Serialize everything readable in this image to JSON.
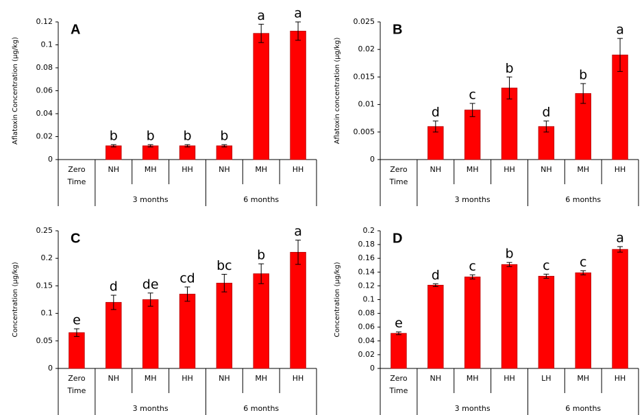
{
  "chart_data": [
    {
      "type": "bar",
      "panel": "A",
      "ylabel": "Aflatoxin Concentration (µg/kg)",
      "color": "#ff0000",
      "categories": [
        "Zero Time",
        "NH",
        "MH",
        "HH",
        "NH",
        "MH",
        "HH"
      ],
      "values": [
        0,
        0.012,
        0.012,
        0.012,
        0.012,
        0.11,
        0.112
      ],
      "errors": [
        null,
        0.001,
        0.001,
        0.001,
        0.001,
        0.008,
        0.008
      ],
      "letters": [
        null,
        "b",
        "b",
        "b",
        "b",
        "a",
        "a"
      ],
      "groups": [
        {
          "name": "3 months",
          "span": 3
        },
        {
          "name": "6 months",
          "span": 3
        }
      ],
      "ylim": [
        0,
        0.12
      ],
      "yticks": [
        0,
        0.02,
        0.04,
        0.06,
        0.08,
        0.1,
        0.12
      ]
    },
    {
      "type": "bar",
      "panel": "B",
      "ylabel": "Aflatoxin concentration (µg/kg)",
      "color": "#ff0000",
      "categories": [
        "Zero Time",
        "NH",
        "MH",
        "HH",
        "NH",
        "MH",
        "HH"
      ],
      "values": [
        0,
        0.006,
        0.009,
        0.013,
        0.006,
        0.012,
        0.019
      ],
      "errors": [
        null,
        0.001,
        0.0012,
        0.002,
        0.001,
        0.0018,
        0.003
      ],
      "letters": [
        null,
        "d",
        "c",
        "b",
        "d",
        "b",
        "a"
      ],
      "groups": [
        {
          "name": "3 months",
          "span": 3
        },
        {
          "name": "6 months",
          "span": 3
        }
      ],
      "ylim": [
        0,
        0.025
      ],
      "yticks": [
        0,
        0.005,
        0.01,
        0.015,
        0.02,
        0.025
      ]
    },
    {
      "type": "bar",
      "panel": "C",
      "ylabel": "Concentration (µg/kg)",
      "color": "#ff0000",
      "categories": [
        "Zero Time",
        "NH",
        "MH",
        "HH",
        "NH",
        "MH",
        "HH"
      ],
      "values": [
        0.065,
        0.12,
        0.125,
        0.135,
        0.155,
        0.172,
        0.211
      ],
      "errors": [
        0.007,
        0.013,
        0.012,
        0.013,
        0.016,
        0.018,
        0.022
      ],
      "letters": [
        "e",
        "d",
        "de",
        "cd",
        "bc",
        "b",
        "a"
      ],
      "groups": [
        {
          "name": "3 months",
          "span": 3
        },
        {
          "name": "6 months",
          "span": 3
        }
      ],
      "ylim": [
        0,
        0.25
      ],
      "yticks": [
        0,
        0.05,
        0.1,
        0.15,
        0.2,
        0.25
      ]
    },
    {
      "type": "bar",
      "panel": "D",
      "ylabel": "Concentration (µg/kg)",
      "color": "#ff0000",
      "categories": [
        "Zero Time",
        "NH",
        "MH",
        "HH",
        "LH",
        "MH",
        "HH"
      ],
      "values": [
        0.051,
        0.121,
        0.133,
        0.151,
        0.134,
        0.139,
        0.173
      ],
      "errors": [
        0.002,
        0.002,
        0.003,
        0.003,
        0.003,
        0.003,
        0.004
      ],
      "letters": [
        "e",
        "d",
        "c",
        "b",
        "c",
        "c",
        "a"
      ],
      "groups": [
        {
          "name": "3 months",
          "span": 3
        },
        {
          "name": "6 months",
          "span": 3
        }
      ],
      "ylim": [
        0,
        0.2
      ],
      "yticks": [
        0,
        0.02,
        0.04,
        0.06,
        0.08,
        0.1,
        0.12,
        0.14,
        0.16,
        0.18,
        0.2
      ]
    }
  ]
}
